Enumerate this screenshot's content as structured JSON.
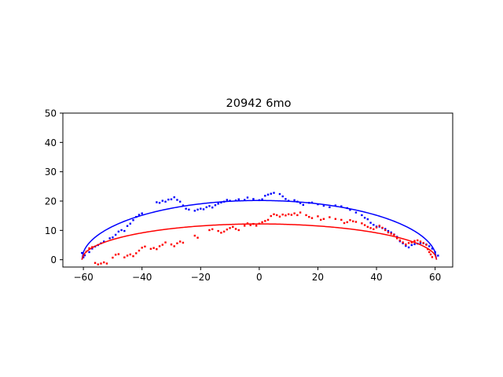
{
  "chart_data": {
    "type": "scatter",
    "title": "20942 6mo",
    "xlabel": "",
    "ylabel": "",
    "xlim": [
      -67,
      66
    ],
    "ylim": [
      -2.5,
      50
    ],
    "xticks": [
      -60,
      -40,
      -20,
      0,
      20,
      40,
      60
    ],
    "yticks": [
      0,
      10,
      20,
      30,
      40,
      50
    ],
    "grid": false,
    "legend": "none",
    "series": [
      {
        "color": "#0000ff",
        "kind": "points",
        "points": [
          [
            -60.5,
            2.3
          ],
          [
            -60,
            0.8
          ],
          [
            -59.5,
            1.5
          ],
          [
            -58,
            2.6
          ],
          [
            -57,
            3.8
          ],
          [
            -56,
            4.5
          ],
          [
            -55,
            5
          ],
          [
            -54,
            5.6
          ],
          [
            -53,
            6.2
          ],
          [
            -51,
            7.3
          ],
          [
            -50,
            7.6
          ],
          [
            -49,
            8.5
          ],
          [
            -48,
            9.6
          ],
          [
            -47,
            10.1
          ],
          [
            -46,
            9.8
          ],
          [
            -45,
            11.5
          ],
          [
            -44,
            12.3
          ],
          [
            -43,
            13.5
          ],
          [
            -42,
            14.6
          ],
          [
            -41,
            15.3
          ],
          [
            -40,
            15.8
          ],
          [
            -35,
            19.6
          ],
          [
            -34,
            19.4
          ],
          [
            -33,
            20.1
          ],
          [
            -32,
            19.8
          ],
          [
            -31,
            20.5
          ],
          [
            -30,
            20.6
          ],
          [
            -29,
            21.3
          ],
          [
            -28,
            20.4
          ],
          [
            -27,
            19.8
          ],
          [
            -26,
            18.5
          ],
          [
            -25,
            17.4
          ],
          [
            -24,
            17.1
          ],
          [
            -22,
            16.7
          ],
          [
            -21,
            17.1
          ],
          [
            -20,
            17.4
          ],
          [
            -19,
            17.2
          ],
          [
            -18,
            17.9
          ],
          [
            -17,
            18.3
          ],
          [
            -16,
            17.8
          ],
          [
            -15,
            18.6
          ],
          [
            -14,
            19.1
          ],
          [
            -13,
            19.5
          ],
          [
            -12,
            19.8
          ],
          [
            -11,
            20.4
          ],
          [
            -10,
            20.1
          ],
          [
            -8,
            20.2
          ],
          [
            -7,
            20.6
          ],
          [
            -5,
            20.4
          ],
          [
            -4,
            21.2
          ],
          [
            -2,
            20.7
          ],
          [
            0,
            20.3
          ],
          [
            1,
            20.6
          ],
          [
            2,
            21.8
          ],
          [
            3,
            22.2
          ],
          [
            4,
            22.5
          ],
          [
            5,
            22.8
          ],
          [
            7,
            22.4
          ],
          [
            8,
            21.6
          ],
          [
            9,
            20.7
          ],
          [
            10,
            20.1
          ],
          [
            12,
            20.3
          ],
          [
            13,
            19.8
          ],
          [
            14,
            19.3
          ],
          [
            15,
            18.7
          ],
          [
            17,
            19.4
          ],
          [
            18,
            19.5
          ],
          [
            20,
            18.9
          ],
          [
            22,
            18.4
          ],
          [
            24,
            17.9
          ],
          [
            26,
            18.5
          ],
          [
            28,
            18.2
          ],
          [
            30,
            17.6
          ],
          [
            31,
            17
          ],
          [
            33,
            16.1
          ],
          [
            35,
            15.2
          ],
          [
            36,
            14.3
          ],
          [
            37,
            13.8
          ],
          [
            38,
            12.6
          ],
          [
            39,
            11.9
          ],
          [
            40,
            11.3
          ],
          [
            41,
            11.3
          ],
          [
            42,
            10.8
          ],
          [
            43,
            10.5
          ],
          [
            44,
            9.8
          ],
          [
            45,
            9.3
          ],
          [
            46,
            8.6
          ],
          [
            47,
            7.8
          ],
          [
            48,
            6.3
          ],
          [
            49,
            5.6
          ],
          [
            50,
            4.7
          ],
          [
            51,
            4.2
          ],
          [
            52,
            5
          ],
          [
            53,
            5.3
          ],
          [
            54,
            5.5
          ],
          [
            55,
            5.7
          ],
          [
            56,
            5.6
          ],
          [
            57,
            5.2
          ],
          [
            58,
            4.6
          ],
          [
            59,
            3.8
          ],
          [
            60,
            2.6
          ],
          [
            61,
            1.4
          ]
        ]
      },
      {
        "color": "#ff0000",
        "kind": "points",
        "points": [
          [
            -60,
            1.5
          ],
          [
            -59,
            2.8
          ],
          [
            -58,
            3.9
          ],
          [
            -57,
            4.3
          ],
          [
            -56,
            -1.1
          ],
          [
            -55,
            -1.6
          ],
          [
            -54,
            -1.3
          ],
          [
            -53,
            -0.9
          ],
          [
            -52,
            -1.3
          ],
          [
            -50,
            0.7
          ],
          [
            -49,
            1.7
          ],
          [
            -48,
            1.9
          ],
          [
            -46,
            0.8
          ],
          [
            -45,
            1.4
          ],
          [
            -44,
            1.8
          ],
          [
            -43,
            1.2
          ],
          [
            -42,
            2.2
          ],
          [
            -41,
            3.1
          ],
          [
            -40,
            4.1
          ],
          [
            -39,
            4.5
          ],
          [
            -37,
            3.7
          ],
          [
            -36,
            4
          ],
          [
            -35,
            3.6
          ],
          [
            -34,
            4.6
          ],
          [
            -33,
            5.1
          ],
          [
            -32,
            5.9
          ],
          [
            -30,
            5.2
          ],
          [
            -29,
            4.6
          ],
          [
            -28,
            5.6
          ],
          [
            -27,
            6.2
          ],
          [
            -26,
            5.8
          ],
          [
            -22,
            8.2
          ],
          [
            -21,
            7.5
          ],
          [
            -17,
            10.1
          ],
          [
            -16,
            10.4
          ],
          [
            -14,
            9.8
          ],
          [
            -13,
            9.2
          ],
          [
            -12,
            9.6
          ],
          [
            -11,
            10.3
          ],
          [
            -10,
            10.8
          ],
          [
            -9,
            11.2
          ],
          [
            -8,
            10.5
          ],
          [
            -7,
            10.1
          ],
          [
            -5,
            11.6
          ],
          [
            -4,
            12.4
          ],
          [
            -3,
            11.8
          ],
          [
            -2,
            12.2
          ],
          [
            -1,
            11.6
          ],
          [
            0,
            12.3
          ],
          [
            1,
            12.8
          ],
          [
            2,
            13.2
          ],
          [
            3,
            13.6
          ],
          [
            4,
            14.9
          ],
          [
            5,
            15.5
          ],
          [
            6,
            15.2
          ],
          [
            7,
            14.7
          ],
          [
            8,
            15.4
          ],
          [
            9,
            15.1
          ],
          [
            10,
            15.5
          ],
          [
            11,
            15.3
          ],
          [
            12,
            15.8
          ],
          [
            13,
            15.2
          ],
          [
            14,
            16.1
          ],
          [
            16,
            15.2
          ],
          [
            17,
            14.6
          ],
          [
            18,
            14.2
          ],
          [
            20,
            14.8
          ],
          [
            21,
            13.6
          ],
          [
            22,
            13.9
          ],
          [
            24,
            14.5
          ],
          [
            26,
            13.9
          ],
          [
            28,
            13.6
          ],
          [
            29,
            12.5
          ],
          [
            30,
            12.8
          ],
          [
            31,
            13.5
          ],
          [
            32,
            13.1
          ],
          [
            33,
            12.9
          ],
          [
            35,
            12.4
          ],
          [
            36,
            11.8
          ],
          [
            37,
            11.2
          ],
          [
            38,
            10.8
          ],
          [
            39,
            10.4
          ],
          [
            40,
            11
          ],
          [
            41,
            11.6
          ],
          [
            42,
            10.9
          ],
          [
            43,
            10.1
          ],
          [
            44,
            9.3
          ],
          [
            45,
            8.9
          ],
          [
            46,
            8.5
          ],
          [
            47,
            7.3
          ],
          [
            48,
            6.6
          ],
          [
            49,
            5.9
          ],
          [
            50,
            5.2
          ],
          [
            51,
            5.7
          ],
          [
            52,
            5.9
          ],
          [
            53,
            6.4
          ],
          [
            54,
            6.6
          ],
          [
            55,
            6.2
          ],
          [
            56,
            5.7
          ],
          [
            57,
            5.1
          ],
          [
            57.5,
            3.6
          ],
          [
            58,
            2.6
          ],
          [
            58.5,
            1.8
          ],
          [
            59,
            0.9
          ]
        ]
      },
      {
        "color": "#0000ff",
        "kind": "curve",
        "x_range": [
          -60.5,
          60.5
        ],
        "peak": 20.2
      },
      {
        "color": "#ff0000",
        "kind": "curve",
        "x_range": [
          -60.5,
          60.5
        ],
        "peak": 12.2
      }
    ]
  }
}
